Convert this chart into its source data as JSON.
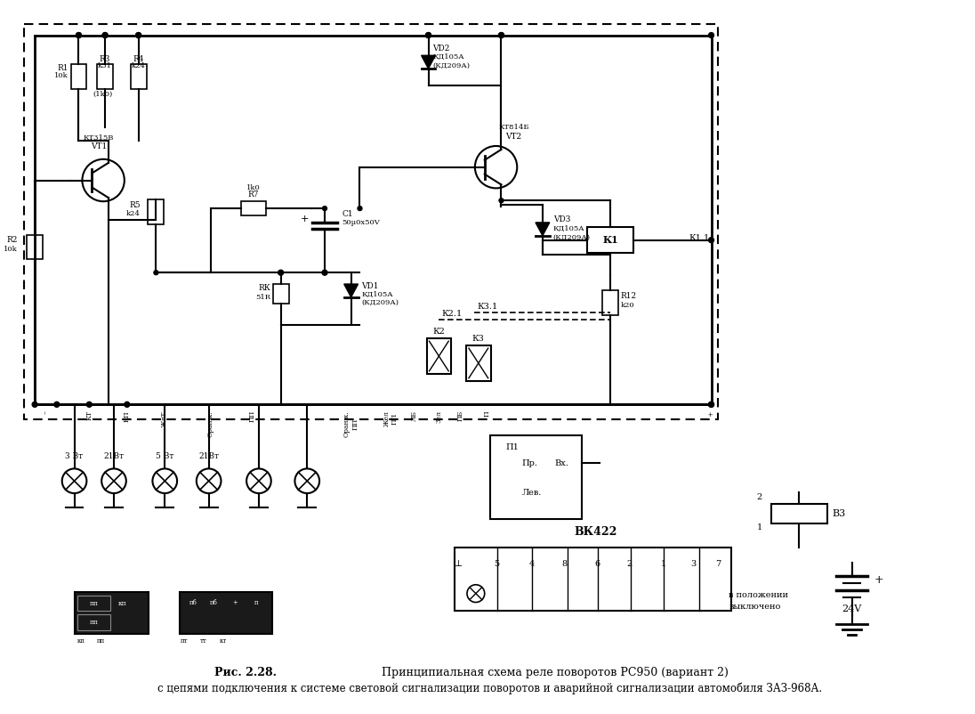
{
  "title_bold": "Рис. 2.28.",
  "title_line1": " Принципиальная схема реле поворотов РС950 (вариант 2)",
  "title_line2": "с цепями подключения к системе световой сигнализации поворотов и аварийной сигнализации автомобиля ЗАЗ-968А.",
  "bg_color": "#ffffff",
  "fig_width": 10.96,
  "fig_height": 8.02,
  "dpi": 100
}
